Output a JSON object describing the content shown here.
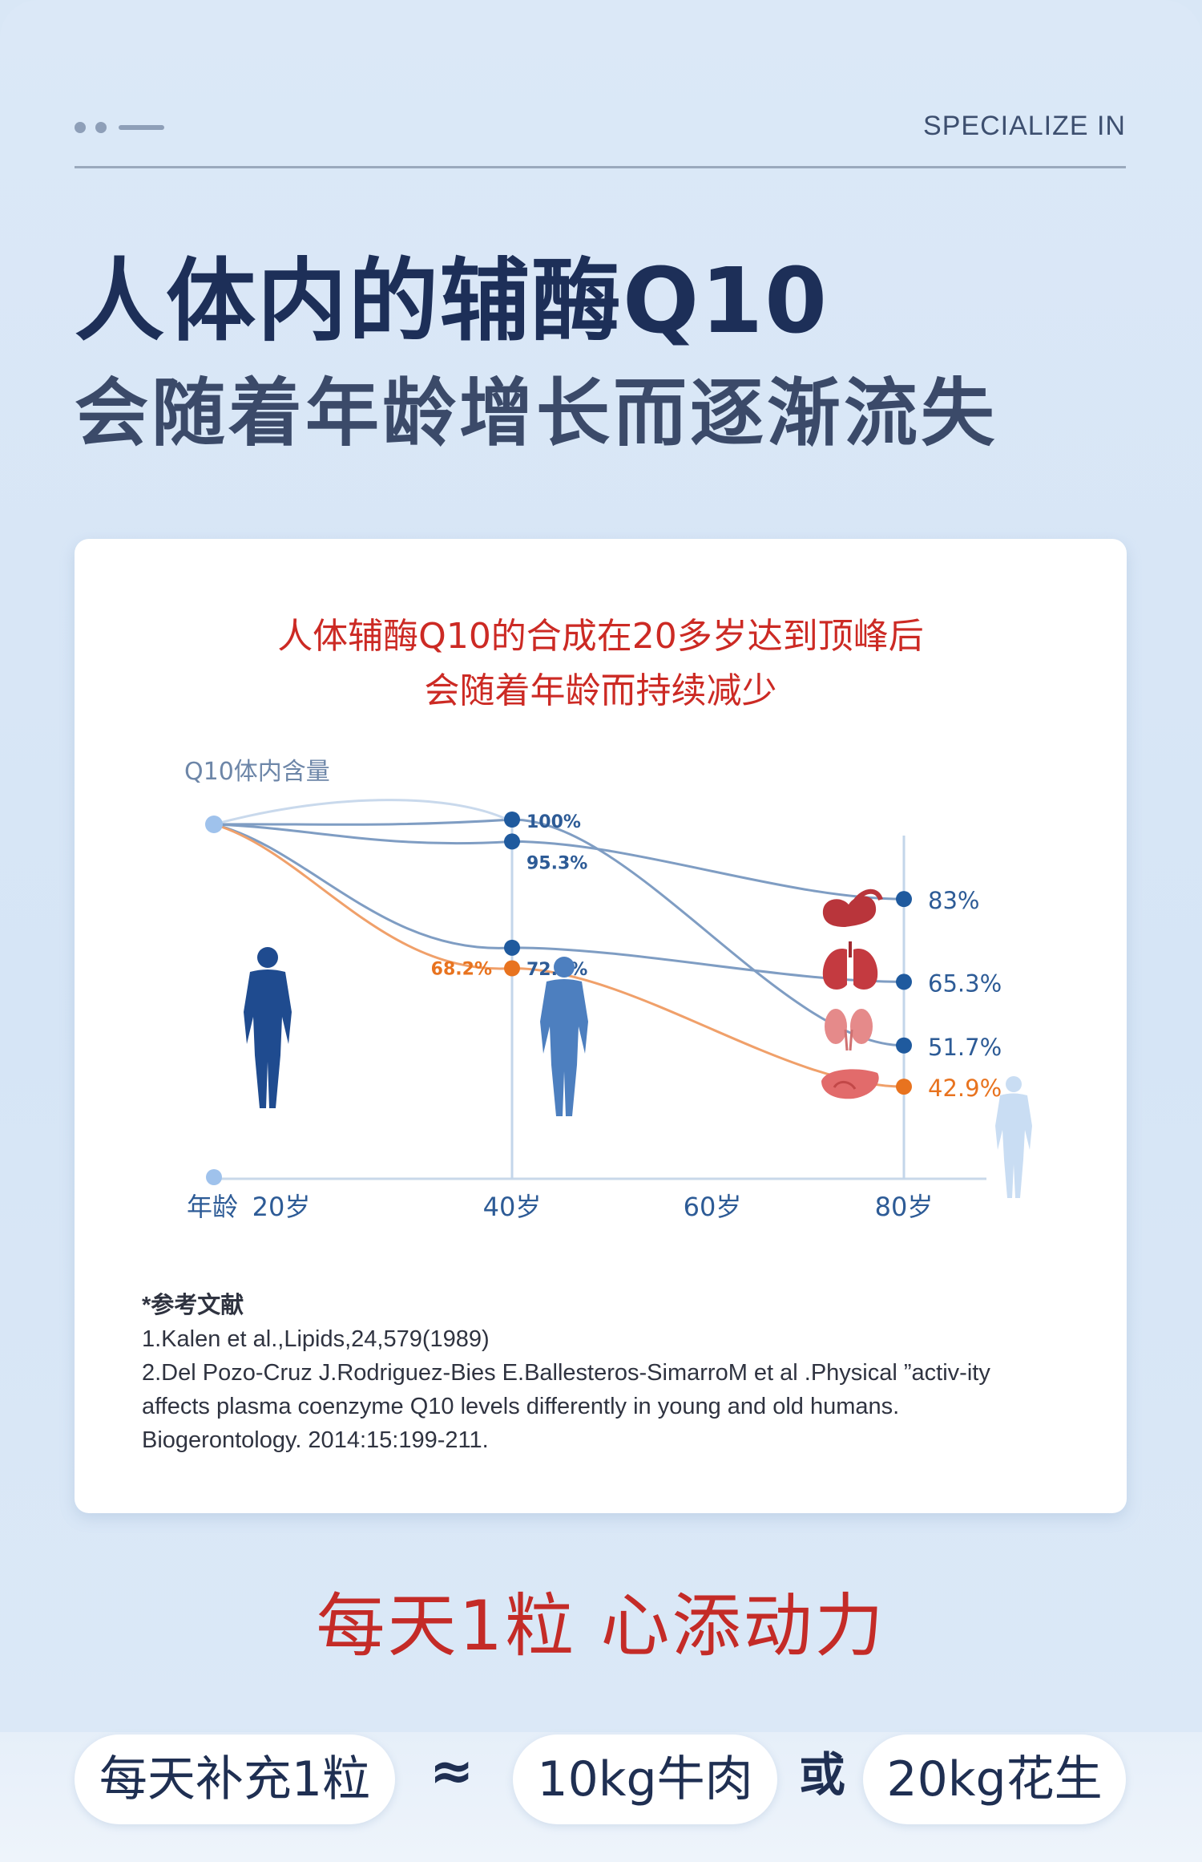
{
  "header": {
    "kicker": "SPECIALIZE IN",
    "title": "人体内的辅酶Q10",
    "subtitle": "会随着年龄增长而逐渐流失"
  },
  "chart_data": {
    "type": "line",
    "title_line1": "人体辅酶Q10的合成在20多岁达到顶峰后",
    "title_line2": "会随着年龄而持续减少",
    "ylabel": "Q10体内含量",
    "xlabel": "年龄",
    "categories": [
      "20岁",
      "40岁",
      "60岁",
      "80岁"
    ],
    "series": [
      {
        "values": [
          null,
          100,
          null,
          51.7
        ],
        "labels": [
          "",
          "100%",
          "",
          "51.7%"
        ],
        "color": "#1f5a9e",
        "organ": "kidneys"
      },
      {
        "values": [
          null,
          95.3,
          null,
          83
        ],
        "labels": [
          "",
          "95.3%",
          "",
          "83%"
        ],
        "color": "#1f5a9e",
        "organ": "heart"
      },
      {
        "values": [
          null,
          72.6,
          null,
          65.3
        ],
        "labels": [
          "",
          "72.6%",
          "",
          "65.3%"
        ],
        "color": "#1f5a9e",
        "organ": "lungs"
      },
      {
        "values": [
          null,
          68.2,
          null,
          42.9
        ],
        "labels": [
          "",
          "68.2%",
          "",
          "42.9%"
        ],
        "color": "#e8731f",
        "organ": "liver"
      }
    ],
    "grid": false,
    "legend": "none"
  },
  "references": {
    "heading": "*参考文献",
    "items": [
      "1.Kalen et al.,Lipids,24,579(1989)",
      "2.Del Pozo-Cruz J.Rodriguez-Bies E.Ballesteros-SimarroM et al .Physical ”activ-ity",
      "affects plasma coenzyme Q10 levels differently in young and old humans.",
      "Biogerontology. 2014:15:199-211."
    ]
  },
  "slogan": "每天1粒  心添动力",
  "bottom": {
    "pill1": "每天补充1粒",
    "approx": "≈",
    "pill2": "10kg牛肉",
    "or": "或",
    "pill3": "20kg花生"
  },
  "colors": {
    "title": "#1d2f58",
    "red": "#c42b27",
    "blue": "#1f5a9e",
    "orange": "#e8731f",
    "background": "#d9e7f6"
  }
}
